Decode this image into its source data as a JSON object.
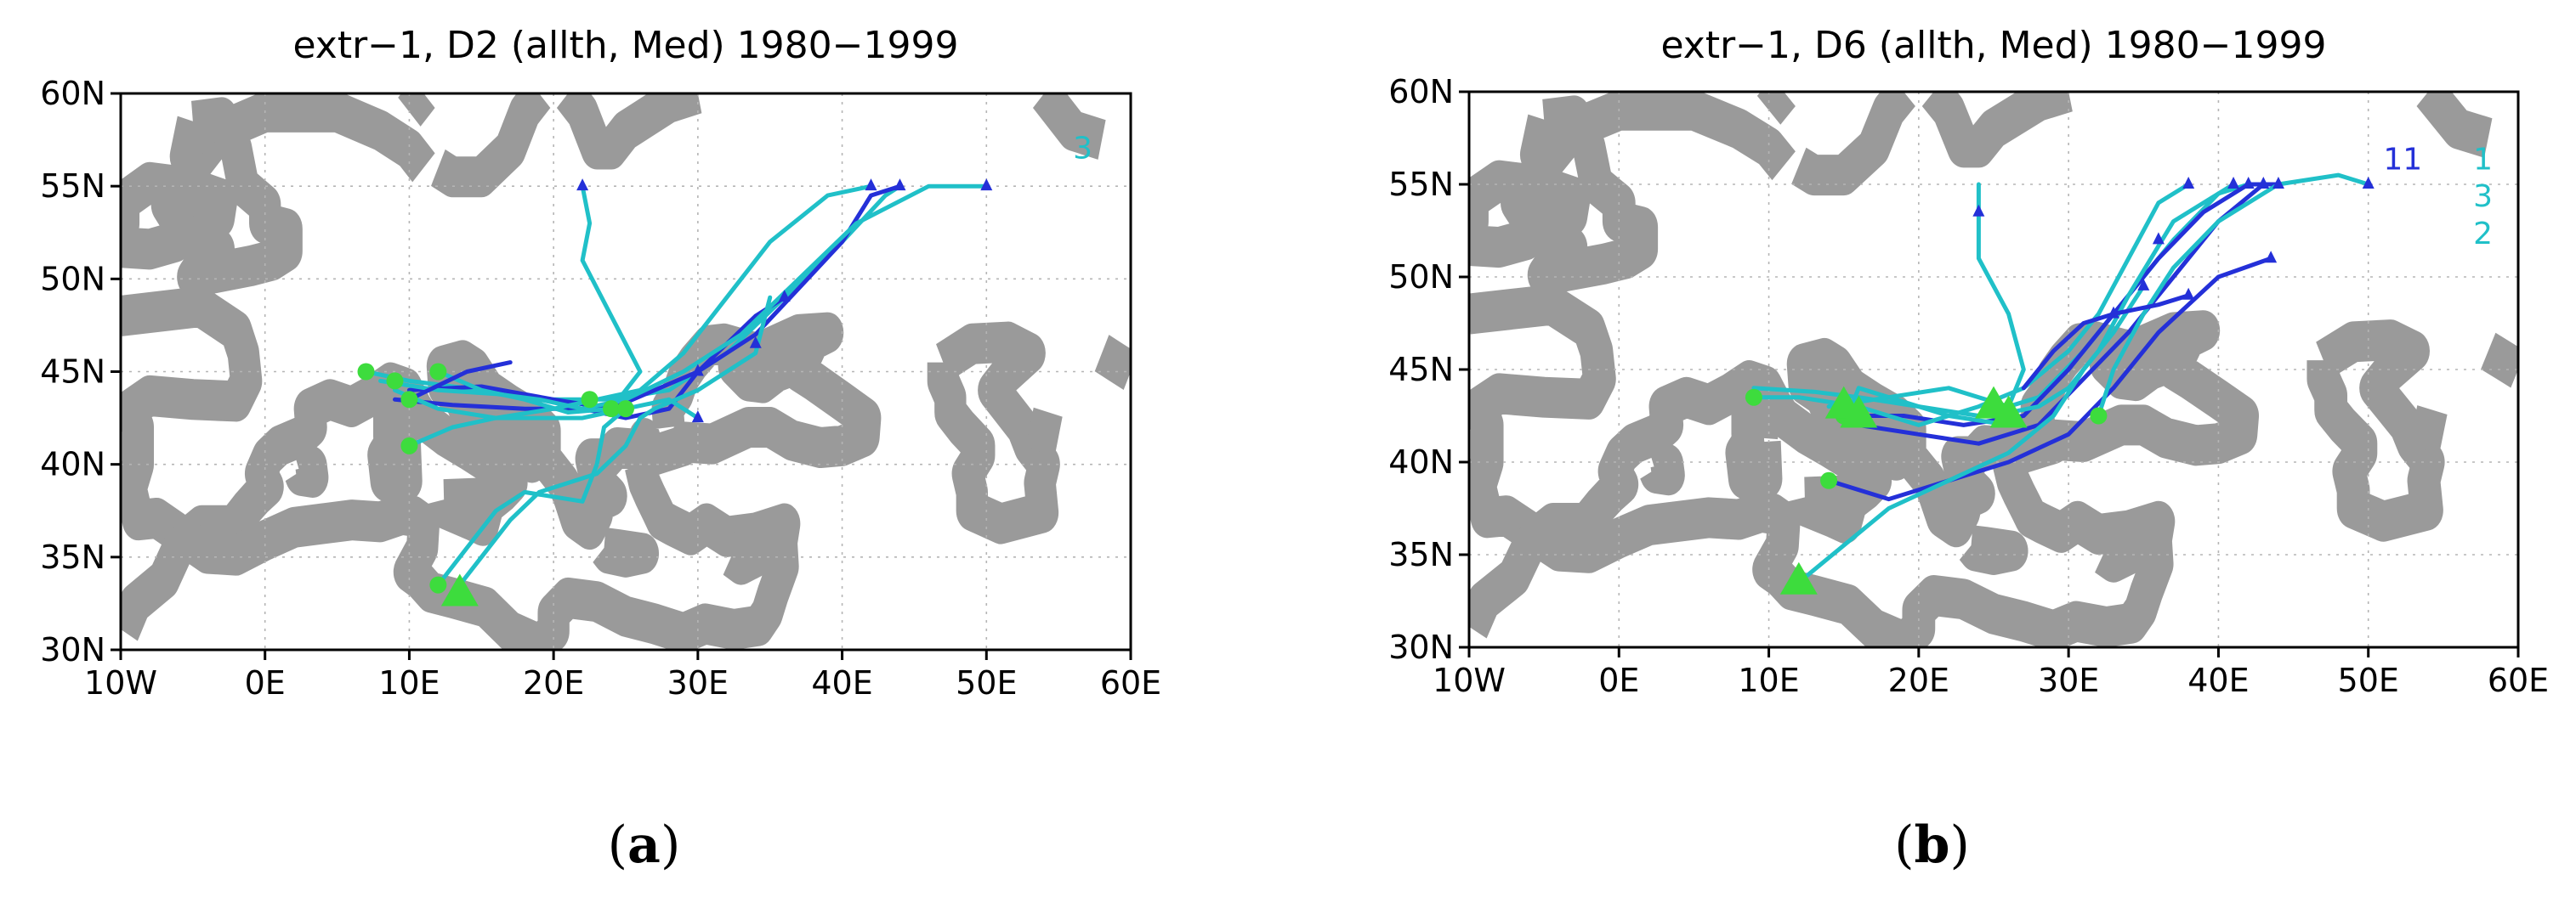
{
  "panels": [
    {
      "id": "a",
      "title": "extr−1, D2 (allth, Med) 1980−1999",
      "caption_letter": "a",
      "x_ticks": [
        "10W",
        "0E",
        "10E",
        "20E",
        "30E",
        "40E",
        "50E",
        "60E"
      ],
      "y_ticks": [
        "30N",
        "35N",
        "40N",
        "45N",
        "50N",
        "55N",
        "60N"
      ],
      "annotations": [
        {
          "text": "3",
          "lon": 56,
          "lat": 56.5,
          "color": "#20c0c8"
        }
      ],
      "tracks": [
        {
          "color": "#20c0c8",
          "points": [
            [
              7,
              45
            ],
            [
              10,
              44.5
            ],
            [
              15,
              44
            ],
            [
              20,
              43.5
            ],
            [
              24,
              43.5
            ],
            [
              28,
              44
            ],
            [
              32,
              46
            ],
            [
              36,
              49
            ],
            [
              40,
              52
            ],
            [
              43,
              54.5
            ],
            [
              44,
              55
            ]
          ]
        },
        {
          "color": "#2430d8",
          "points": [
            [
              10,
              44
            ],
            [
              15,
              44.2
            ],
            [
              20,
              43.5
            ],
            [
              24,
              43
            ],
            [
              27,
              44
            ],
            [
              30,
              45
            ],
            [
              34,
              47
            ],
            [
              37,
              49.5
            ],
            [
              40,
              52
            ],
            [
              42,
              54.5
            ],
            [
              44,
              55
            ]
          ]
        },
        {
          "color": "#2430d8",
          "points": [
            [
              9,
              43.5
            ],
            [
              13,
              43.2
            ],
            [
              18,
              43
            ],
            [
              22,
              43
            ],
            [
              25,
              42.5
            ],
            [
              28,
              43
            ],
            [
              30,
              45
            ],
            [
              34,
              48
            ],
            [
              36,
              49
            ]
          ]
        },
        {
          "color": "#20c0c8",
          "points": [
            [
              9,
              44
            ],
            [
              12,
              43
            ],
            [
              16,
              42.5
            ],
            [
              20,
              43
            ],
            [
              23,
              43.5
            ],
            [
              26,
              44
            ],
            [
              29,
              46
            ],
            [
              32,
              49
            ],
            [
              35,
              52
            ],
            [
              39,
              54.5
            ],
            [
              42,
              55
            ]
          ]
        },
        {
          "color": "#20c0c8",
          "points": [
            [
              8,
              44.5
            ],
            [
              12,
              44
            ],
            [
              16,
              43.8
            ],
            [
              19,
              43.5
            ],
            [
              22,
              43
            ],
            [
              25,
              43.5
            ],
            [
              29,
              45
            ],
            [
              33,
              47
            ],
            [
              37,
              50
            ],
            [
              41,
              53
            ],
            [
              46,
              55
            ],
            [
              50,
              55
            ]
          ]
        },
        {
          "color": "#20c0c8",
          "points": [
            [
              12,
              45
            ],
            [
              15,
              44
            ],
            [
              18,
              43.5
            ],
            [
              21,
              42.8
            ],
            [
              24,
              43
            ],
            [
              26,
              45
            ],
            [
              24,
              48
            ],
            [
              22,
              51
            ],
            [
              22.5,
              53
            ],
            [
              22,
              55
            ]
          ]
        },
        {
          "color": "#20c0c8",
          "points": [
            [
              13,
              33
            ],
            [
              15,
              35
            ],
            [
              17,
              37
            ],
            [
              19,
              38.5
            ],
            [
              21,
              39
            ],
            [
              23,
              39.5
            ],
            [
              25,
              41
            ],
            [
              26,
              42.5
            ],
            [
              27,
              43
            ],
            [
              30,
              44
            ],
            [
              34,
              46
            ],
            [
              35,
              49
            ]
          ]
        },
        {
          "color": "#20c0c8",
          "points": [
            [
              12,
              33.5
            ],
            [
              14,
              35.5
            ],
            [
              16,
              37.5
            ],
            [
              18,
              38.5
            ],
            [
              22,
              38
            ],
            [
              23,
              40
            ],
            [
              23.5,
              42
            ],
            [
              25,
              43
            ]
          ]
        },
        {
          "color": "#2430d8",
          "points": [
            [
              10,
              43.5
            ],
            [
              14,
              45
            ],
            [
              17,
              45.5
            ]
          ]
        },
        {
          "color": "#20c0c8",
          "points": [
            [
              10,
              41
            ],
            [
              13,
              42
            ],
            [
              16,
              42.5
            ],
            [
              19,
              42.5
            ],
            [
              22,
              42.5
            ],
            [
              25,
              43
            ],
            [
              28,
              43.5
            ],
            [
              30,
              42.5
            ]
          ]
        }
      ],
      "circles": [
        [
          7,
          45
        ],
        [
          9,
          44.5
        ],
        [
          10,
          43.5
        ],
        [
          12,
          45
        ],
        [
          10,
          41
        ],
        [
          12,
          33.5
        ],
        [
          22.5,
          43.5
        ],
        [
          24,
          43
        ],
        [
          25,
          43
        ]
      ],
      "triangles_big": [
        [
          13.5,
          33
        ]
      ],
      "triangles_small": [
        [
          44,
          55
        ],
        [
          42,
          55
        ],
        [
          50,
          55
        ],
        [
          22,
          55
        ],
        [
          36,
          49
        ],
        [
          30,
          42.5
        ],
        [
          34,
          46.5
        ],
        [
          30,
          45
        ]
      ]
    },
    {
      "id": "b",
      "title": "extr−1, D6 (allth, Med) 1980−1999",
      "caption_letter": "b",
      "x_ticks": [
        "10W",
        "0E",
        "10E",
        "20E",
        "30E",
        "40E",
        "50E",
        "60E"
      ],
      "y_ticks": [
        "30N",
        "35N",
        "40N",
        "45N",
        "50N",
        "55N",
        "60N"
      ],
      "annotations": [
        {
          "text": "11",
          "lon": 51,
          "lat": 55.8,
          "color": "#2430d8"
        },
        {
          "text": "1",
          "lon": 57,
          "lat": 55.8,
          "color": "#20c0c8"
        },
        {
          "text": "3",
          "lon": 57,
          "lat": 53.8,
          "color": "#20c0c8"
        },
        {
          "text": "2",
          "lon": 57,
          "lat": 51.8,
          "color": "#20c0c8"
        }
      ],
      "tracks": [
        {
          "color": "#20c0c8",
          "points": [
            [
              9,
              44
            ],
            [
              13,
              43.8
            ],
            [
              16,
              43.5
            ],
            [
              20,
              43
            ],
            [
              24,
              42.5
            ],
            [
              28,
              43.5
            ],
            [
              31,
              46
            ],
            [
              34,
              49
            ],
            [
              37,
              52
            ],
            [
              40,
              54.5
            ],
            [
              42,
              55
            ]
          ]
        },
        {
          "color": "#2430d8",
          "points": [
            [
              15,
              42.5
            ],
            [
              19,
              42.5
            ],
            [
              23,
              42
            ],
            [
              27,
              42.5
            ],
            [
              30,
              45
            ],
            [
              33,
              48
            ],
            [
              36,
              51
            ],
            [
              39,
              53.5
            ],
            [
              42,
              55
            ],
            [
              44,
              55
            ]
          ]
        },
        {
          "color": "#2430d8",
          "points": [
            [
              16,
              42
            ],
            [
              20,
              41.5
            ],
            [
              24,
              41
            ],
            [
              28,
              42
            ],
            [
              31,
              44.5
            ],
            [
              34,
              47
            ],
            [
              37,
              50
            ],
            [
              40,
              53
            ],
            [
              43,
              55
            ]
          ]
        },
        {
          "color": "#2430d8",
          "points": [
            [
              14,
              39
            ],
            [
              18,
              38
            ],
            [
              22,
              39
            ],
            [
              26,
              40
            ],
            [
              30,
              41.5
            ],
            [
              33,
              44
            ],
            [
              36,
              47
            ],
            [
              40,
              50
            ],
            [
              43.5,
              51
            ]
          ]
        },
        {
          "color": "#20c0c8",
          "points": [
            [
              25,
              42.5
            ],
            [
              28,
              43
            ],
            [
              30,
              44
            ],
            [
              32,
              46
            ],
            [
              34,
              49
            ],
            [
              37,
              53
            ],
            [
              41,
              55
            ]
          ]
        },
        {
          "color": "#20c0c8",
          "points": [
            [
              12,
              33.5
            ],
            [
              15,
              35.5
            ],
            [
              18,
              37.5
            ],
            [
              22,
              39
            ],
            [
              26,
              40.5
            ],
            [
              29,
              42.5
            ],
            [
              31,
              45
            ],
            [
              33,
              47
            ],
            [
              35,
              49.5
            ]
          ]
        },
        {
          "color": "#20c0c8",
          "points": [
            [
              32,
              42.5
            ],
            [
              33,
              45
            ],
            [
              35,
              48
            ],
            [
              37,
              50.5
            ],
            [
              40,
              53
            ],
            [
              44,
              55
            ],
            [
              48,
              55.5
            ],
            [
              50,
              55
            ]
          ]
        },
        {
          "color": "#20c0c8",
          "points": [
            [
              14,
              43
            ],
            [
              18,
              43.5
            ],
            [
              22,
              44
            ],
            [
              26,
              43
            ],
            [
              27,
              45
            ],
            [
              26,
              48
            ],
            [
              24,
              51
            ],
            [
              24,
              55
            ]
          ]
        },
        {
          "color": "#20c0c8",
          "points": [
            [
              9,
              43.5
            ],
            [
              12,
              43.5
            ],
            [
              16,
              43
            ],
            [
              20,
              42
            ],
            [
              24,
              43
            ],
            [
              27,
              44
            ],
            [
              30,
              46
            ],
            [
              32,
              48
            ],
            [
              34,
              51
            ],
            [
              36,
              54
            ],
            [
              38,
              55
            ]
          ]
        },
        {
          "color": "#2430d8",
          "points": [
            [
              27,
              44
            ],
            [
              29,
              46
            ],
            [
              31,
              47.5
            ],
            [
              33,
              48
            ],
            [
              36,
              48.5
            ],
            [
              38,
              49
            ]
          ]
        },
        {
          "color": "#20c0c8",
          "points": [
            [
              15,
              42
            ],
            [
              16,
              44
            ],
            [
              18,
              43.5
            ],
            [
              22,
              42.5
            ],
            [
              26,
              42
            ]
          ]
        }
      ],
      "circles": [
        [
          9,
          43.5
        ],
        [
          14,
          39
        ],
        [
          32,
          42.5
        ],
        [
          15,
          42.5
        ]
      ],
      "triangles_big": [
        [
          12,
          33.5
        ],
        [
          15,
          43
        ],
        [
          16,
          42.5
        ],
        [
          25,
          43
        ],
        [
          26,
          42.5
        ]
      ],
      "triangles_small": [
        [
          42,
          55
        ],
        [
          44,
          55
        ],
        [
          43,
          55
        ],
        [
          43.5,
          51
        ],
        [
          41,
          55
        ],
        [
          50,
          55
        ],
        [
          38,
          55
        ],
        [
          24,
          53.5
        ],
        [
          36,
          52
        ],
        [
          38,
          49
        ],
        [
          35,
          49.5
        ],
        [
          33,
          48
        ]
      ]
    }
  ],
  "colors": {
    "cyan": "#20c0c8",
    "blue": "#2430d8",
    "green": "#3ddc3d",
    "coast": "#9a9a9a"
  }
}
